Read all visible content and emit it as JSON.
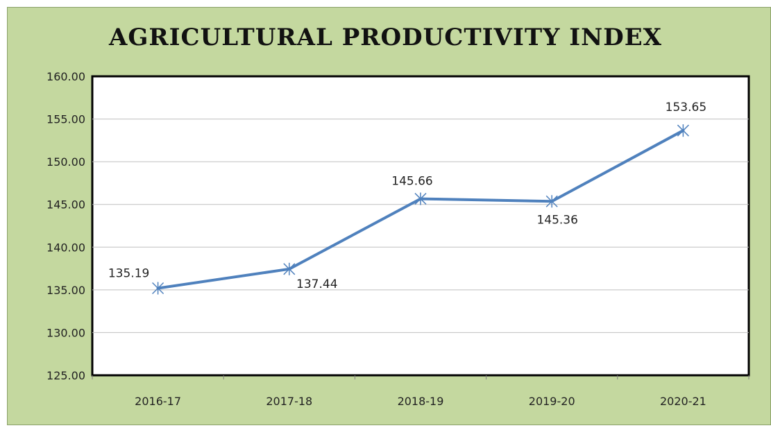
{
  "chart_data": {
    "type": "line",
    "title": "AGRICULTURAL PRODUCTIVITY INDEX",
    "categories": [
      "2016-17",
      "2017-18",
      "2018-19",
      "2019-20",
      "2020-21"
    ],
    "series": [
      {
        "values": [
          135.19,
          137.44,
          145.66,
          145.36,
          153.65
        ]
      }
    ],
    "data_labels": [
      "135.19",
      "137.44",
      "145.66",
      "145.36",
      "153.65"
    ],
    "ylim": [
      125,
      160
    ],
    "yticks": [
      "125.00",
      "130.00",
      "135.00",
      "140.00",
      "145.00",
      "150.00",
      "155.00",
      "160.00"
    ],
    "grid": true,
    "legend": "none",
    "colors": {
      "background": "#c4d89f",
      "plot_area": "#ffffff",
      "line": "#4f81bd",
      "grid": "#bfbfbf"
    }
  }
}
